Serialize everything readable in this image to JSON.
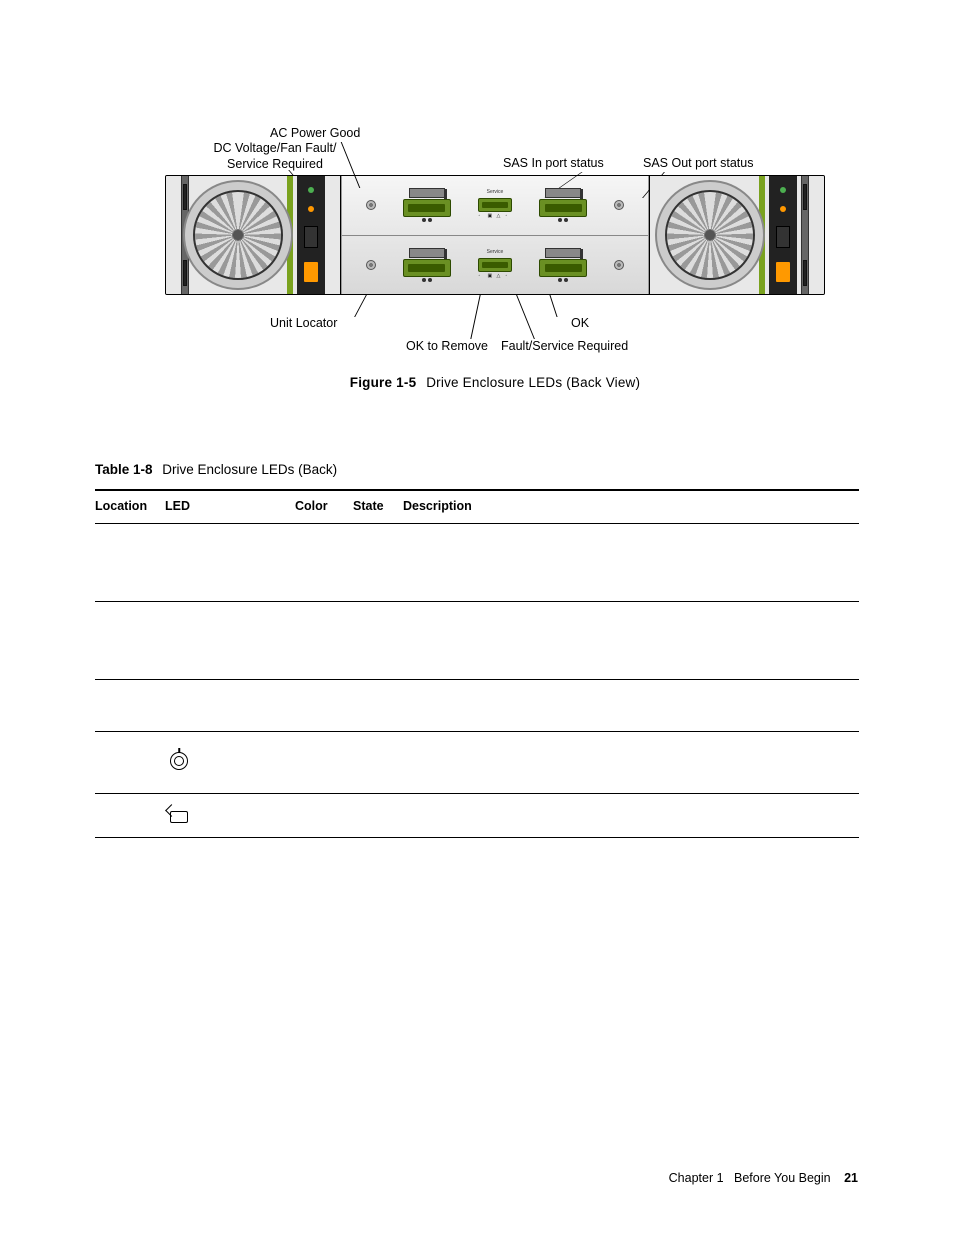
{
  "figure": {
    "id": "Figure 1-5",
    "title": "Drive Enclosure LEDs (Back View)",
    "callouts_top": {
      "ac_power": "AC Power Good",
      "dc_fault": "DC Voltage/Fan Fault/\nService Required",
      "sas_in": "SAS In port status",
      "sas_out": "SAS Out port status"
    },
    "callouts_bottom": {
      "unit_locator": "Unit Locator",
      "ok": "OK",
      "ok_to_remove": "OK to Remove",
      "fault_service": "Fault/Service Required"
    },
    "hardware": {
      "psu_edge_color": "#7aa21e",
      "port_color": "#6a9023",
      "plug_color": "#ff9900",
      "chassis_bg": "#e8e8e8",
      "center_bg_top": "#f6f6f6",
      "center_bg_bottom": "#d8d8d8",
      "service_label": "Service"
    }
  },
  "table": {
    "id": "Table 1-8",
    "title": "Drive Enclosure LEDs (Back)",
    "columns": [
      "Location",
      "LED",
      "Color",
      "State",
      "Description"
    ],
    "rows": [
      {
        "location": "",
        "led": "",
        "color": "",
        "state": "",
        "desc": "",
        "icon": "",
        "hclass": "h0"
      },
      {
        "location": "",
        "led": "",
        "color": "",
        "state": "",
        "desc": "",
        "icon": "",
        "hclass": "h1"
      },
      {
        "location": "",
        "led": "",
        "color": "",
        "state": "",
        "desc": "",
        "icon": "",
        "hclass": "h2"
      },
      {
        "location": "",
        "led": "",
        "color": "",
        "state": "",
        "desc": "",
        "icon": "locator",
        "hclass": "h3"
      },
      {
        "location": "",
        "led": "",
        "color": "",
        "state": "",
        "desc": "",
        "icon": "okrm",
        "hclass": "h4"
      }
    ]
  },
  "footer": {
    "chapter": "Chapter 1",
    "section": "Before You Begin",
    "page": "21"
  }
}
